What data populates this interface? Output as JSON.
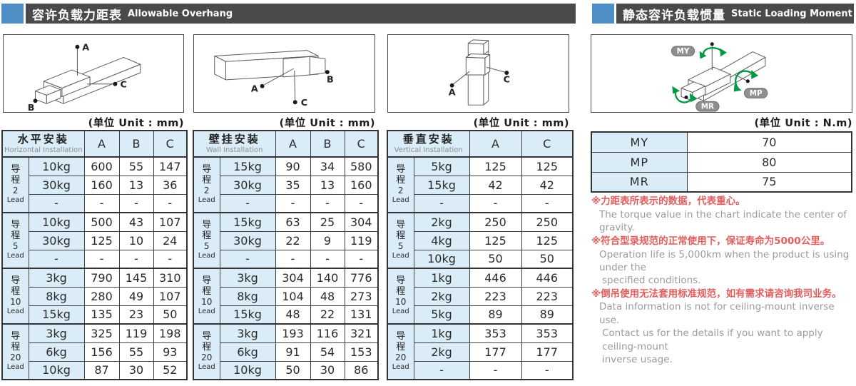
{
  "colors": {
    "accent_blue": "#4e8fc7",
    "header_bg": "#4a4a4c",
    "cell_blue": "#d9ecf7",
    "note_red": "#e25d5d",
    "note_gray": "#9b9b9b",
    "moment_green": "#009a44"
  },
  "left_section": {
    "header": {
      "title_zh": "容许负载力距表",
      "title_en": "Allowable Overhang"
    },
    "unit_label_mm": "(单位 Unit : mm)",
    "diagrams": {
      "horizontal": {
        "points": [
          "A",
          "B",
          "C"
        ]
      },
      "wall": {
        "points": [
          "A",
          "B",
          "C"
        ]
      },
      "vertical": {
        "points": [
          "A",
          "C"
        ]
      }
    },
    "tables": [
      {
        "title_zh": "水平安装",
        "title_en": "Horizontal Installation",
        "columns": [
          "A",
          "B",
          "C"
        ],
        "groups": [
          {
            "lead_zh": "导程",
            "lead_num": "2",
            "lead_en": "Lead",
            "rows": [
              {
                "load": "10kg",
                "values": [
                  "600",
                  "55",
                  "147"
                ]
              },
              {
                "load": "30kg",
                "values": [
                  "160",
                  "13",
                  "36"
                ]
              },
              {
                "load": "-",
                "values": [
                  "-",
                  "-",
                  "-"
                ]
              }
            ]
          },
          {
            "lead_zh": "导程",
            "lead_num": "5",
            "lead_en": "Lead",
            "rows": [
              {
                "load": "10kg",
                "values": [
                  "500",
                  "43",
                  "107"
                ]
              },
              {
                "load": "30kg",
                "values": [
                  "125",
                  "10",
                  "24"
                ]
              },
              {
                "load": "-",
                "values": [
                  "-",
                  "-",
                  "-"
                ]
              }
            ]
          },
          {
            "lead_zh": "导程",
            "lead_num": "10",
            "lead_en": "Lead",
            "rows": [
              {
                "load": "3kg",
                "values": [
                  "790",
                  "145",
                  "310"
                ]
              },
              {
                "load": "8kg",
                "values": [
                  "280",
                  "49",
                  "107"
                ]
              },
              {
                "load": "15kg",
                "values": [
                  "135",
                  "23",
                  "50"
                ]
              }
            ]
          },
          {
            "lead_zh": "导程",
            "lead_num": "20",
            "lead_en": "Lead",
            "rows": [
              {
                "load": "3kg",
                "values": [
                  "325",
                  "119",
                  "198"
                ]
              },
              {
                "load": "6kg",
                "values": [
                  "156",
                  "55",
                  "93"
                ]
              },
              {
                "load": "10kg",
                "values": [
                  "87",
                  "30",
                  "52"
                ]
              }
            ]
          }
        ]
      },
      {
        "title_zh": "壁挂安装",
        "title_en": "Wall Installation",
        "columns": [
          "A",
          "B",
          "C"
        ],
        "groups": [
          {
            "lead_zh": "导程",
            "lead_num": "2",
            "lead_en": "Lead",
            "rows": [
              {
                "load": "15kg",
                "values": [
                  "90",
                  "34",
                  "580"
                ]
              },
              {
                "load": "30kg",
                "values": [
                  "35",
                  "13",
                  "160"
                ]
              },
              {
                "load": "-",
                "values": [
                  "-",
                  "-",
                  "-"
                ]
              }
            ]
          },
          {
            "lead_zh": "导程",
            "lead_num": "5",
            "lead_en": "Lead",
            "rows": [
              {
                "load": "15kg",
                "values": [
                  "63",
                  "25",
                  "304"
                ]
              },
              {
                "load": "30kg",
                "values": [
                  "22",
                  "9",
                  "119"
                ]
              },
              {
                "load": "-",
                "values": [
                  "-",
                  "-",
                  "-"
                ]
              }
            ]
          },
          {
            "lead_zh": "导程",
            "lead_num": "10",
            "lead_en": "Lead",
            "rows": [
              {
                "load": "3kg",
                "values": [
                  "304",
                  "140",
                  "776"
                ]
              },
              {
                "load": "8kg",
                "values": [
                  "104",
                  "48",
                  "273"
                ]
              },
              {
                "load": "15kg",
                "values": [
                  "48",
                  "22",
                  "131"
                ]
              }
            ]
          },
          {
            "lead_zh": "导程",
            "lead_num": "20",
            "lead_en": "Lead",
            "rows": [
              {
                "load": "3kg",
                "values": [
                  "193",
                  "116",
                  "321"
                ]
              },
              {
                "load": "6kg",
                "values": [
                  "91",
                  "54",
                  "153"
                ]
              },
              {
                "load": "10kg",
                "values": [
                  "50",
                  "30",
                  "86"
                ]
              }
            ]
          }
        ]
      },
      {
        "title_zh": "垂直安装",
        "title_en": "Vertical Installation",
        "columns": [
          "A",
          "C"
        ],
        "groups": [
          {
            "lead_zh": "导程",
            "lead_num": "2",
            "lead_en": "Lead",
            "rows": [
              {
                "load": "5kg",
                "values": [
                  "125",
                  "125"
                ]
              },
              {
                "load": "15kg",
                "values": [
                  "42",
                  "42"
                ]
              },
              {
                "load": "-",
                "values": [
                  "-",
                  "-"
                ]
              }
            ]
          },
          {
            "lead_zh": "导程",
            "lead_num": "5",
            "lead_en": "Lead",
            "rows": [
              {
                "load": "2kg",
                "values": [
                  "250",
                  "250"
                ]
              },
              {
                "load": "4kg",
                "values": [
                  "125",
                  "125"
                ]
              },
              {
                "load": "10kg",
                "values": [
                  "50",
                  "50"
                ]
              }
            ]
          },
          {
            "lead_zh": "导程",
            "lead_num": "10",
            "lead_en": "Lead",
            "rows": [
              {
                "load": "1kg",
                "values": [
                  "446",
                  "446"
                ]
              },
              {
                "load": "2kg",
                "values": [
                  "223",
                  "223"
                ]
              },
              {
                "load": "5kg",
                "values": [
                  "89",
                  "89"
                ]
              }
            ]
          },
          {
            "lead_zh": "导程",
            "lead_num": "20",
            "lead_en": "Lead",
            "rows": [
              {
                "load": "1kg",
                "values": [
                  "353",
                  "353"
                ]
              },
              {
                "load": "2kg",
                "values": [
                  "177",
                  "177"
                ]
              },
              {
                "load": "-",
                "values": [
                  "-",
                  "-"
                ]
              }
            ]
          }
        ]
      }
    ]
  },
  "right_section": {
    "header": {
      "title_zh": "静态容许负载惯量",
      "title_en": "Static Loading Moment"
    },
    "unit_label_nm": "(单位 Unit : N.m)",
    "diagram": {
      "labels": [
        "MY",
        "MP",
        "MR"
      ]
    },
    "moment_table": [
      {
        "label": "MY",
        "value": "70"
      },
      {
        "label": "MP",
        "value": "80"
      },
      {
        "label": "MR",
        "value": "75"
      }
    ],
    "notes": [
      {
        "zh": "※力距表所表示的数据，代表重心。",
        "en": [
          "The torque value in the chart indicate the center of gravity."
        ]
      },
      {
        "zh": "※符合型录规范的正常使用下，保证寿命为5000公里。",
        "en": [
          "Operation life is 5,000km when the product is using under the",
          "specified conditions."
        ]
      },
      {
        "zh": "※倒吊使用无法套用标准规范，如有需求请咨询我司业务。",
        "en": [
          "Data information is not for ceiling-mount inverse use.",
          "Contact us for the details if you want to apply ceiling-mount",
          "inverse usage."
        ]
      }
    ]
  }
}
